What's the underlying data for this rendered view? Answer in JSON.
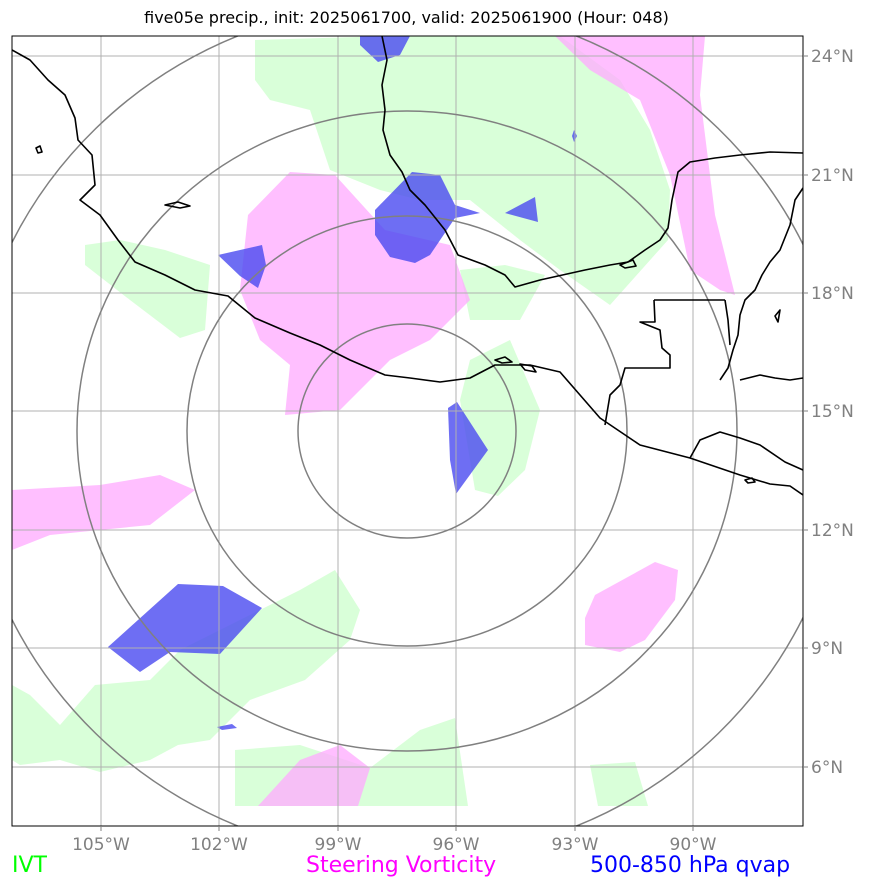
{
  "title": "five05e precip., init: 2025061700, valid: 2025061900 (Hour: 048)",
  "model": "five05e",
  "init": "2025061700",
  "valid": "2025061900",
  "forecast_hour": "048",
  "lon_labels": [
    "105°W",
    "102°W",
    "99°W",
    "96°W",
    "93°W",
    "90°W"
  ],
  "lat_labels": [
    "24°N",
    "21°N",
    "18°N",
    "15°N",
    "12°N",
    "9°N",
    "6°N"
  ],
  "legend": {
    "ivt": {
      "label": "IVT",
      "color": "#00ff00"
    },
    "vort": {
      "label": "Steering Vorticity",
      "color": "#ff00ff"
    },
    "qvap": {
      "label": "500-850 hPa qvap",
      "color": "#0000ff"
    }
  },
  "map_style": {
    "ivt_fill": "#ccffcc",
    "vort_fill": "#ffaaff",
    "qvap_fill": "#4a4af0",
    "grid_color": "#b0b0b0",
    "ring_color": "#808080",
    "coast_color": "#000000"
  }
}
